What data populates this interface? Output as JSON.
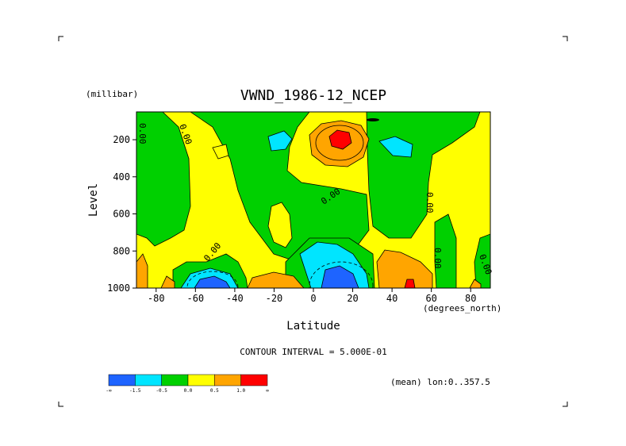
{
  "chart_data": {
    "type": "heatmap",
    "title": "VWND_1986-12_NCEP",
    "xlabel": "Latitude",
    "x_unit": "(degrees_north)",
    "ylabel": "Level",
    "y_unit": "(millibar)",
    "x_range": [
      -90,
      90
    ],
    "y_range": [
      1000,
      50
    ],
    "x_ticks": [
      "-80",
      "-60",
      "-40",
      "-20",
      "0",
      "20",
      "40",
      "60",
      "80"
    ],
    "x_tick_values": [
      -80,
      -60,
      -40,
      -20,
      0,
      20,
      40,
      60,
      80
    ],
    "y_ticks": [
      "200",
      "400",
      "600",
      "800",
      "1000"
    ],
    "y_tick_values": [
      200,
      400,
      600,
      800,
      1000
    ],
    "contour_interval_text": "CONTOUR INTERVAL = 5.000E-01",
    "mean_note": "(mean) lon:0..357.5",
    "contour_labels": [
      "0.00"
    ],
    "colorbar": {
      "colors": [
        "#1e64ff",
        "#00e5ff",
        "#00d000",
        "#ffff00",
        "#ffa500",
        "#ff0000"
      ],
      "labels": [
        "-∞",
        "-1.5",
        "-0.5",
        "0.0",
        "0.5",
        "1.0",
        "∞"
      ]
    },
    "regions": {
      "background_level": "0.0 to 0.5 (yellow)",
      "notable": [
        {
          "label": "max > 1.0",
          "lat": 12,
          "level": 180
        },
        {
          "label": "min < -1.5",
          "lat": 12,
          "level": 980
        },
        {
          "label": "min < -1.5",
          "lat": -50,
          "level": 990
        },
        {
          "label": "max > 1.0",
          "lat": 48,
          "level": 980
        }
      ]
    }
  },
  "colors": {
    "deep_negative": "#1e64ff",
    "negative": "#00e5ff",
    "near_zero_negative": "#00d000",
    "near_zero_positive": "#ffff00",
    "positive": "#ffa500",
    "strong_positive": "#ff0000"
  }
}
